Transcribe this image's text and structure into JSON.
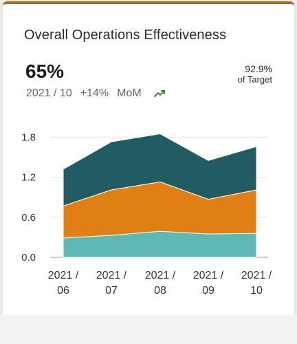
{
  "card": {
    "title": "Overall Operations Effectiveness",
    "kpi_value": "65%",
    "period": "2021 / 10",
    "change": "+14%",
    "change_basis": "MoM",
    "target_value": "92.9%",
    "target_label": "of Target",
    "trend_icon": "trend-up-icon"
  },
  "colors": {
    "accent": "#a86a16",
    "trend": "#2f8a2f",
    "series": [
      "#5fb8b4",
      "#e07f13",
      "#215c63"
    ]
  },
  "chart_data": {
    "type": "area",
    "stacked": true,
    "categories": [
      "2021 / 06",
      "2021 / 07",
      "2021 / 08",
      "2021 / 09",
      "2021 / 10"
    ],
    "category_lines": [
      [
        "2021 /",
        "06"
      ],
      [
        "2021 /",
        "07"
      ],
      [
        "2021 /",
        "08"
      ],
      [
        "2021 /",
        "09"
      ],
      [
        "2021 /",
        "10"
      ]
    ],
    "series": [
      {
        "values": [
          0.29,
          0.33,
          0.39,
          0.35,
          0.36
        ]
      },
      {
        "values": [
          0.48,
          0.68,
          0.74,
          0.52,
          0.65
        ]
      },
      {
        "values": [
          0.55,
          0.72,
          0.72,
          0.58,
          0.65
        ]
      }
    ],
    "ylim": [
      0,
      2.0
    ],
    "yticks": [
      0.0,
      0.6,
      1.2,
      1.8
    ],
    "ytick_labels": [
      "0.0",
      "0.6",
      "1.2",
      "1.8"
    ],
    "grid": true,
    "legend": "none"
  }
}
